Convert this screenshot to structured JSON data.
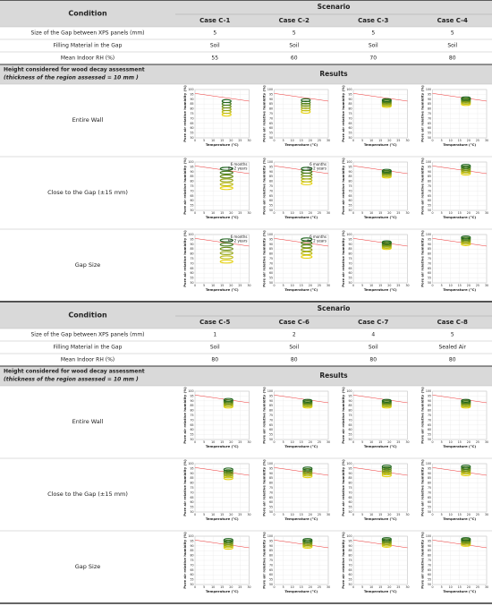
{
  "plot_axes": {
    "xlabel": "Temperature (°C)",
    "ylabel": "Pore air relative humidity (%)",
    "xlim": [
      0,
      30
    ],
    "ylim": [
      50,
      100
    ],
    "xticks": [
      0,
      5,
      10,
      15,
      20,
      25,
      30
    ],
    "yticks": [
      50,
      55,
      60,
      65,
      70,
      75,
      80,
      85,
      90,
      95,
      100
    ],
    "threshold": {
      "x": [
        0,
        30
      ],
      "y": [
        96,
        88
      ]
    }
  },
  "sections": [
    {
      "header": {
        "condition": "Condition",
        "scenario": "Scenario",
        "cases": [
          "Case C-1",
          "Case C-2",
          "Case C-3",
          "Case C-4"
        ]
      },
      "rows": [
        {
          "label": "Size of the Gap between XPS panels (mm)",
          "values": [
            5,
            5,
            5,
            5
          ]
        },
        {
          "label": "Filling Material in the Gap",
          "values": [
            "Soil",
            "Soil",
            "Soil",
            "Soil"
          ]
        },
        {
          "label": "Mean Indoor RH (%)",
          "values": [
            55,
            60,
            70,
            80
          ]
        }
      ],
      "results_header": {
        "height_label": "Height considered for wood decay assessment",
        "thickness_label": "(thickness of the region assessed = 10 mm )",
        "results": "Results"
      },
      "result_rows": [
        {
          "label": "Entire Wall",
          "plots": [
            {
              "temp": [
                15,
                20
              ],
              "rh": [
                74,
                88
              ]
            },
            {
              "temp": [
                15,
                20
              ],
              "rh": [
                77,
                89
              ]
            },
            {
              "temp": [
                16,
                21
              ],
              "rh": [
                83,
                89
              ]
            },
            {
              "temp": [
                16,
                21
              ],
              "rh": [
                85,
                91
              ]
            }
          ]
        },
        {
          "label": "Close to the Gap (±15 mm)",
          "plots": [
            {
              "temp": [
                14,
                21
              ],
              "rh": [
                73,
                93
              ],
              "annotations": [
                "6 months",
                "for 2 years"
              ]
            },
            {
              "temp": [
                15,
                21
              ],
              "rh": [
                78,
                93
              ],
              "annotations": [
                "6 months",
                "for 2 years"
              ]
            },
            {
              "temp": [
                16,
                21
              ],
              "rh": [
                85,
                91
              ]
            },
            {
              "temp": [
                16,
                21
              ],
              "rh": [
                88,
                96
              ]
            }
          ]
        },
        {
          "label": "Gap Size",
          "plots": [
            {
              "temp": [
                14,
                21
              ],
              "rh": [
                72,
                94
              ],
              "annotations": [
                "6 months",
                "for 2 years"
              ]
            },
            {
              "temp": [
                15,
                21
              ],
              "rh": [
                77,
                95
              ],
              "annotations": [
                "6 months",
                "for 2 years"
              ]
            },
            {
              "temp": [
                16,
                21
              ],
              "rh": [
                86,
                92
              ]
            },
            {
              "temp": [
                16,
                21
              ],
              "rh": [
                90,
                97
              ]
            }
          ]
        }
      ]
    },
    {
      "header": {
        "condition": "Condition",
        "scenario": "Scenario",
        "cases": [
          "Case C-5",
          "Case C-6",
          "Case C-7",
          "Case C-8"
        ]
      },
      "rows": [
        {
          "label": "Size of the Gap between XPS panels (mm)",
          "values": [
            1,
            2,
            4,
            5
          ]
        },
        {
          "label": "Filling Material in the Gap",
          "values": [
            "Soil",
            "Soil",
            "Soil",
            "Sealed Air"
          ]
        },
        {
          "label": "Mean Indoor RH (%)",
          "values": [
            80,
            80,
            80,
            80
          ]
        }
      ],
      "results_header": {
        "height_label": "Height considered for wood decay assessment",
        "thickness_label": "(thickness of the region assessed = 10 mm )",
        "results": "Results"
      },
      "result_rows": [
        {
          "label": "Entire Wall",
          "plots": [
            {
              "temp": [
                16,
                21
              ],
              "rh": [
                84,
                91
              ]
            },
            {
              "temp": [
                16,
                21
              ],
              "rh": [
                84,
                90
              ]
            },
            {
              "temp": [
                16,
                21
              ],
              "rh": [
                84,
                90
              ]
            },
            {
              "temp": [
                16,
                21
              ],
              "rh": [
                84,
                90
              ]
            }
          ]
        },
        {
          "label": "Close to the Gap (±15 mm)",
          "plots": [
            {
              "temp": [
                16,
                21
              ],
              "rh": [
                85,
                94
              ]
            },
            {
              "temp": [
                16,
                21
              ],
              "rh": [
                87,
                95
              ]
            },
            {
              "temp": [
                16,
                21
              ],
              "rh": [
                88,
                97
              ]
            },
            {
              "temp": [
                16,
                21
              ],
              "rh": [
                89,
                97
              ]
            }
          ]
        },
        {
          "label": "Gap Size",
          "plots": [
            {
              "temp": [
                16,
                21
              ],
              "rh": [
                88,
                96
              ]
            },
            {
              "temp": [
                16,
                21
              ],
              "rh": [
                89,
                96
              ]
            },
            {
              "temp": [
                16,
                21
              ],
              "rh": [
                90,
                97
              ]
            },
            {
              "temp": [
                16,
                21
              ],
              "rh": [
                91,
                97
              ]
            }
          ]
        }
      ]
    }
  ]
}
